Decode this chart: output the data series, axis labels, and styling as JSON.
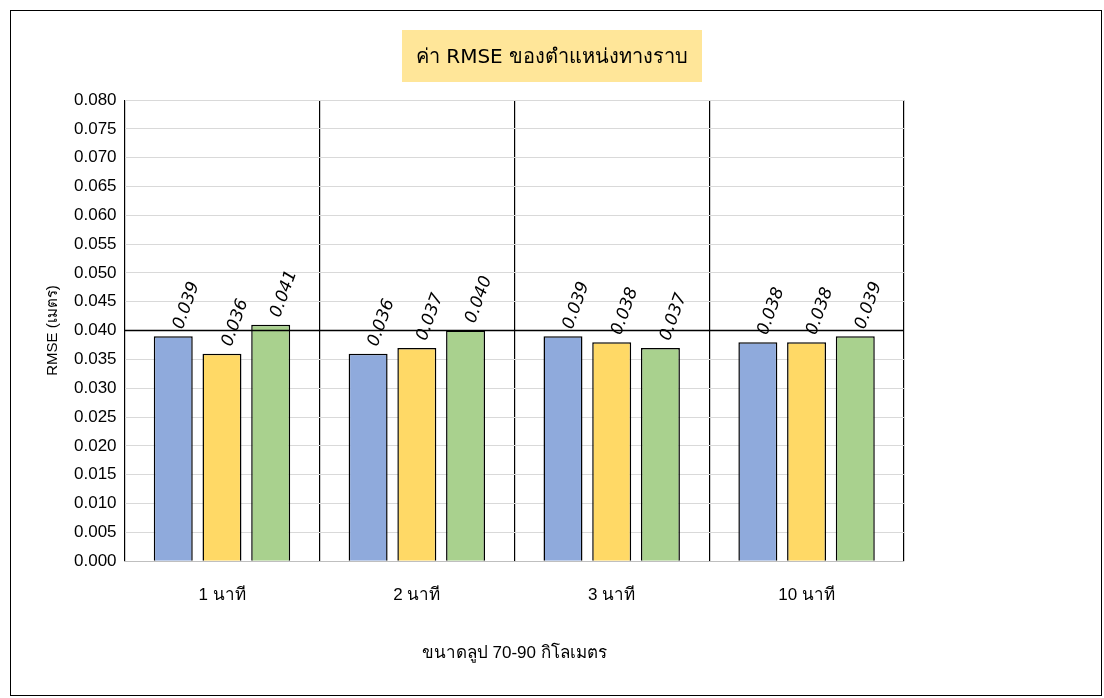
{
  "chart_data": {
    "type": "bar",
    "title": "ค่า RMSE ของตำแหน่งทางราบ",
    "xlabel": "ขนาดลูป 70-90 กิโลเมตร",
    "ylabel": "RMSE (เมตร)",
    "categories": [
      "1 นาที",
      "2 นาที",
      "3 นาที",
      "10 นาที"
    ],
    "series": [
      {
        "color": "#8faadc",
        "values": [
          0.039,
          0.036,
          0.039,
          0.038
        ],
        "value_labels": [
          "0.039",
          "0.036",
          "0.039",
          "0.038"
        ]
      },
      {
        "color": "#ffd966",
        "values": [
          0.036,
          0.037,
          0.038,
          0.038
        ],
        "value_labels": [
          "0.036",
          "0.037",
          "0.038",
          "0.038"
        ]
      },
      {
        "color": "#a9d18e",
        "values": [
          0.041,
          0.04,
          0.037,
          0.039
        ],
        "value_labels": [
          "0.041",
          "0.040",
          "0.037",
          "0.039"
        ]
      }
    ],
    "ylim": [
      0,
      0.08
    ],
    "yticks": [
      {
        "value": 0,
        "label": "0.000"
      },
      {
        "value": 0.005,
        "label": "0.005"
      },
      {
        "value": 0.01,
        "label": "0.010"
      },
      {
        "value": 0.015,
        "label": "0.015"
      },
      {
        "value": 0.02,
        "label": "0.020"
      },
      {
        "value": 0.025,
        "label": "0.025"
      },
      {
        "value": 0.03,
        "label": "0.030"
      },
      {
        "value": 0.035,
        "label": "0.035"
      },
      {
        "value": 0.04,
        "label": "0.040"
      },
      {
        "value": 0.045,
        "label": "0.045"
      },
      {
        "value": 0.05,
        "label": "0.050"
      },
      {
        "value": 0.055,
        "label": "0.055"
      },
      {
        "value": 0.06,
        "label": "0.060"
      },
      {
        "value": 0.065,
        "label": "0.065"
      },
      {
        "value": 0.07,
        "label": "0.070"
      },
      {
        "value": 0.075,
        "label": "0.075"
      },
      {
        "value": 0.08,
        "label": "0.080"
      }
    ],
    "ref_lines": [
      {
        "axis": "y",
        "value": 0.04,
        "color": "#000000"
      }
    ],
    "grid": true,
    "legend": false
  }
}
